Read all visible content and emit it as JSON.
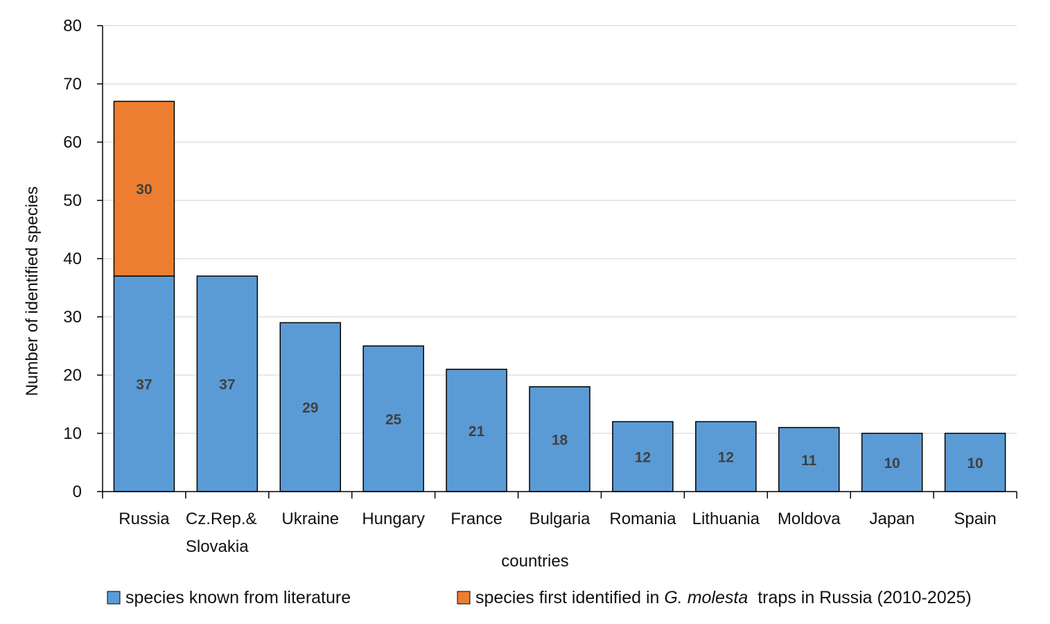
{
  "chart_data": {
    "type": "bar",
    "stacked": true,
    "categories": [
      "Russia",
      "Cz.Rep.& Slovakia",
      "Ukraine",
      "Hungary",
      "France",
      "Bulgaria",
      "Romania",
      "Lithuania",
      "Moldova",
      "Japan",
      "Spain"
    ],
    "series": [
      {
        "name": "species known from literature",
        "color": "#5b9bd5",
        "values": [
          37,
          37,
          29,
          25,
          21,
          18,
          12,
          12,
          11,
          10,
          10
        ]
      },
      {
        "name": "species first identified in G. molesta traps in Russia (2010-2025)",
        "color": "#ed7d31",
        "values": [
          30,
          null,
          null,
          null,
          null,
          null,
          null,
          null,
          null,
          null,
          null
        ]
      }
    ],
    "xlabel": "countries",
    "ylabel": "Number of identified species",
    "ylim": [
      0,
      80
    ],
    "yticks": [
      0,
      10,
      20,
      30,
      40,
      50,
      60,
      70,
      80
    ],
    "grid": true,
    "legend_position": "bottom",
    "legend": {
      "item1": "species known from literature",
      "item2_prefix": "species first identified in ",
      "item2_italic": "G. molesta",
      "item2_suffix": "traps in Russia (2010-2025)"
    }
  }
}
